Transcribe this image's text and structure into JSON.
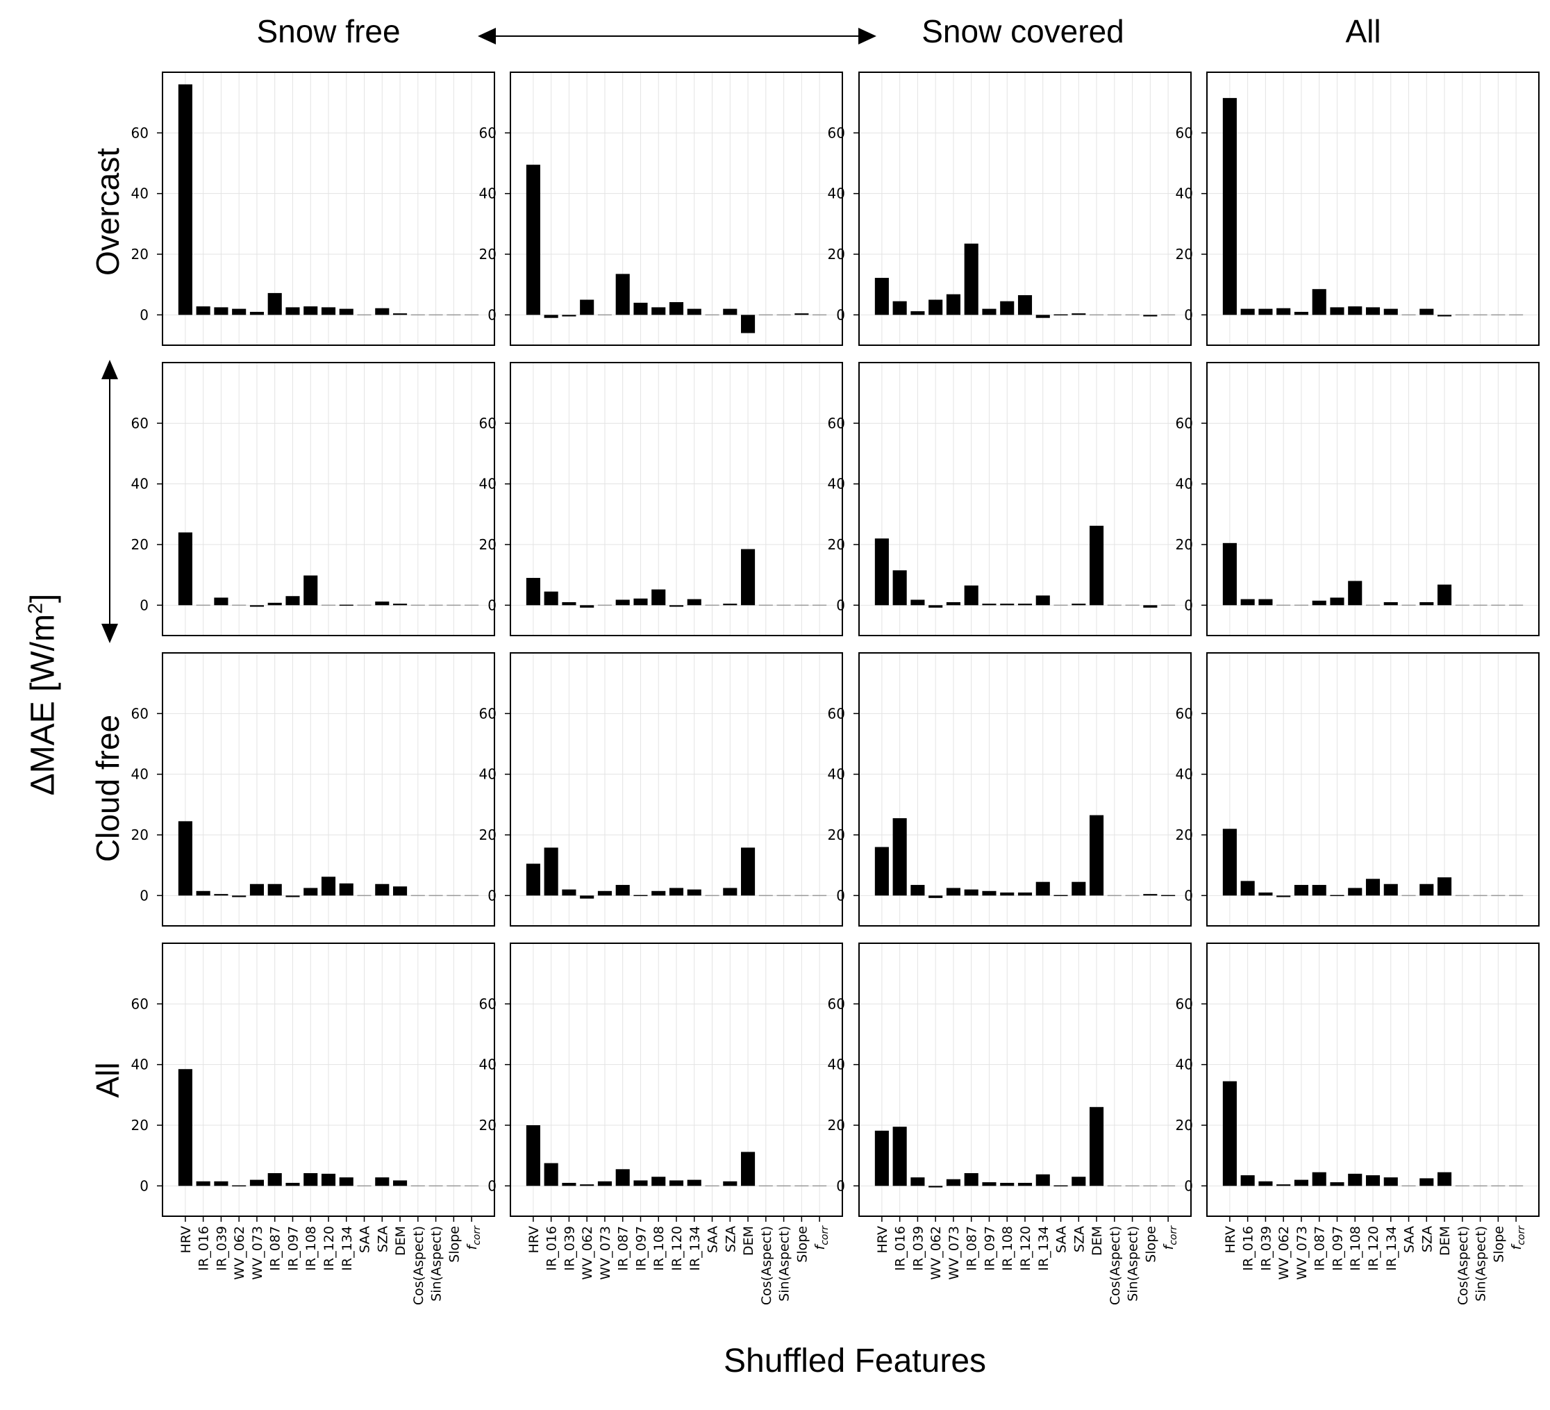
{
  "figure": {
    "column_titles": [
      "Snow free",
      "Snow covered",
      "All"
    ],
    "row_titles": [
      "Overcast",
      "Cloud free",
      "All"
    ],
    "ylabel": "ΔMAE [W/m",
    "ylabel_sup": "2",
    "ylabel_end": "]",
    "xlabel": "Shuffled Features"
  },
  "chart_data": {
    "type": "bar",
    "layout": "4x4 grid of bar panels",
    "features": [
      "HRV",
      "IR_016",
      "IR_039",
      "WV_062",
      "WV_073",
      "IR_087",
      "IR_097",
      "IR_108",
      "IR_120",
      "IR_134",
      "SAA",
      "SZA",
      "DEM",
      "Cos(Aspect)",
      "Sin(Aspect)",
      "Slope",
      "f_corr"
    ],
    "ylim": [
      -10,
      80
    ],
    "yticks": [
      0,
      20,
      40,
      60
    ],
    "grid": true,
    "bar_color": "#000000",
    "panels": [
      {
        "row": 0,
        "col": 0,
        "values": [
          76,
          2.8,
          2.5,
          2,
          1,
          7.2,
          2.5,
          2.8,
          2.5,
          2,
          0,
          2.2,
          0.5,
          0,
          0,
          0.2,
          0
        ]
      },
      {
        "row": 0,
        "col": 1,
        "values": [
          49.5,
          -1,
          -0.5,
          5,
          0.2,
          13.5,
          4,
          2.5,
          4.2,
          2,
          0.2,
          2,
          -6,
          0.2,
          0.2,
          0.5,
          0
        ]
      },
      {
        "row": 0,
        "col": 2,
        "values": [
          12.2,
          4.5,
          1.2,
          5,
          6.8,
          23.5,
          2,
          4.5,
          6.5,
          -1,
          0.3,
          0.5,
          0.2,
          0,
          0,
          -0.5,
          0
        ]
      },
      {
        "row": 0,
        "col": 3,
        "values": [
          71.5,
          2,
          2,
          2.2,
          1,
          8.5,
          2.5,
          2.8,
          2.5,
          2,
          0,
          2,
          -0.5,
          0.2,
          0,
          0,
          0
        ]
      },
      {
        "row": 1,
        "col": 0,
        "values": [
          24,
          0.2,
          2.5,
          0,
          -0.5,
          0.8,
          3,
          9.8,
          0.2,
          0.3,
          0,
          1.2,
          0.5,
          0,
          0,
          0.2,
          0
        ]
      },
      {
        "row": 1,
        "col": 1,
        "values": [
          9,
          4.5,
          1,
          -0.8,
          0,
          1.8,
          2.2,
          5.2,
          -0.5,
          2,
          0,
          0.5,
          18.5,
          0,
          0,
          -0.2,
          0
        ]
      },
      {
        "row": 1,
        "col": 2,
        "values": [
          22,
          11.5,
          1.8,
          -0.8,
          1,
          6.5,
          0.5,
          0.5,
          0.5,
          3.2,
          0,
          0.5,
          26.2,
          0,
          0,
          -0.8,
          0
        ]
      },
      {
        "row": 1,
        "col": 3,
        "values": [
          20.5,
          2,
          2,
          0,
          -0.2,
          1.5,
          2.5,
          8,
          0,
          1,
          0,
          1,
          6.8,
          0,
          0,
          0,
          0
        ]
      },
      {
        "row": 2,
        "col": 0,
        "values": [
          24.5,
          1.5,
          0.5,
          -0.5,
          3.8,
          3.8,
          -0.5,
          2.5,
          6.2,
          4,
          0,
          3.8,
          3,
          0,
          0,
          0.2,
          0
        ]
      },
      {
        "row": 2,
        "col": 1,
        "values": [
          10.5,
          15.8,
          2,
          -1,
          1.5,
          3.5,
          0.3,
          1.5,
          2.5,
          2,
          0,
          2.5,
          15.8,
          0,
          0,
          0.2,
          0
        ]
      },
      {
        "row": 2,
        "col": 2,
        "values": [
          16,
          25.5,
          3.5,
          -0.8,
          2.5,
          2,
          1.5,
          1,
          1,
          4.5,
          -0.3,
          4.5,
          26.5,
          0,
          0,
          0.5,
          0.3
        ]
      },
      {
        "row": 2,
        "col": 3,
        "values": [
          22,
          4.8,
          1,
          -0.5,
          3.5,
          3.5,
          -0.3,
          2.5,
          5.5,
          3.8,
          0,
          3.8,
          6,
          0,
          0,
          0.2,
          0
        ]
      },
      {
        "row": 3,
        "col": 0,
        "values": [
          38.5,
          1.5,
          1.5,
          0.3,
          2,
          4.2,
          1,
          4.2,
          4,
          2.8,
          0,
          2.8,
          1.8,
          0,
          0,
          0,
          0
        ]
      },
      {
        "row": 3,
        "col": 1,
        "values": [
          20,
          7.5,
          1,
          0.5,
          1.5,
          5.5,
          1.8,
          3,
          1.8,
          2,
          0,
          1.5,
          11.2,
          0,
          0,
          0,
          0.2
        ]
      },
      {
        "row": 3,
        "col": 2,
        "values": [
          18.2,
          19.5,
          2.8,
          -0.5,
          2.2,
          4.2,
          1.2,
          1,
          1,
          3.8,
          -0.3,
          3,
          26,
          0,
          0,
          0,
          0
        ]
      },
      {
        "row": 3,
        "col": 3,
        "values": [
          34.5,
          3.5,
          1.5,
          0.5,
          2,
          4.5,
          1.2,
          4,
          3.5,
          2.8,
          0,
          2.5,
          4.5,
          0,
          0,
          0,
          0
        ]
      }
    ]
  }
}
